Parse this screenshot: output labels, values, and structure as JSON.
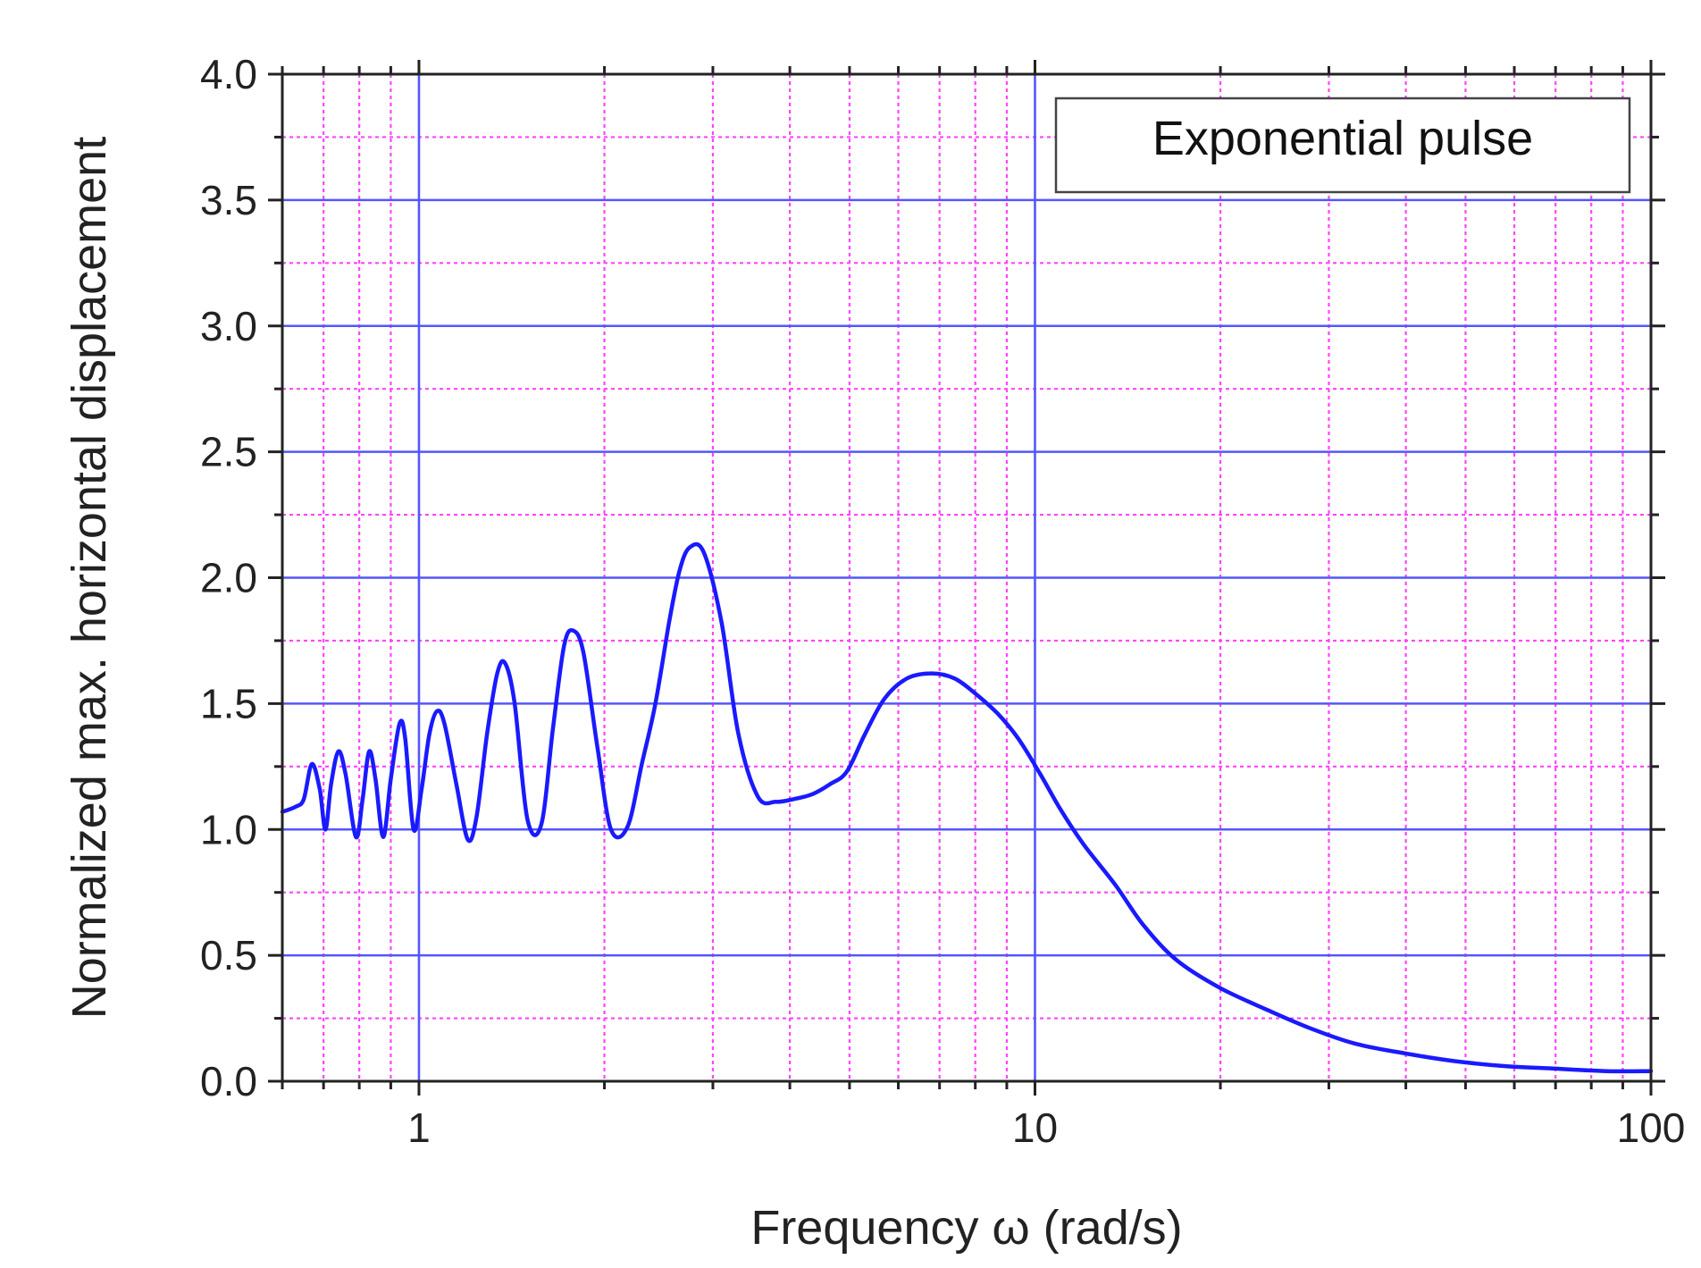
{
  "chart_data": {
    "type": "line",
    "xscale": "log",
    "xlim": [
      0.6,
      100
    ],
    "ylim": [
      0.0,
      4.0
    ],
    "xlabel": "Frequency ω (rad/s)",
    "ylabel": "Normalized max. horizontal displacement",
    "legend": {
      "position": "top-right",
      "entries": [
        "Exponential pulse"
      ]
    },
    "grid": true,
    "xticks": [
      {
        "value": 1,
        "label": "1"
      },
      {
        "value": 10,
        "label": "10"
      },
      {
        "value": 100,
        "label": "100"
      }
    ],
    "yticks": [
      {
        "value": 0.0,
        "label": "0.0"
      },
      {
        "value": 0.5,
        "label": "0.5"
      },
      {
        "value": 1.0,
        "label": "1.0"
      },
      {
        "value": 1.5,
        "label": "1.5"
      },
      {
        "value": 2.0,
        "label": "2.0"
      },
      {
        "value": 2.5,
        "label": "2.5"
      },
      {
        "value": 3.0,
        "label": "3.0"
      },
      {
        "value": 3.5,
        "label": "3.5"
      },
      {
        "value": 4.0,
        "label": "4.0"
      }
    ],
    "colors": {
      "line": "#1a1aff",
      "major_grid": "#5555ff",
      "minor_grid": "#ff44ff",
      "frame": "#222222"
    },
    "series": [
      {
        "name": "Exponential pulse",
        "x": [
          0.6,
          0.63,
          0.65,
          0.67,
          0.69,
          0.705,
          0.72,
          0.74,
          0.76,
          0.79,
          0.81,
          0.83,
          0.85,
          0.875,
          0.9,
          0.93,
          0.95,
          0.98,
          1.01,
          1.04,
          1.07,
          1.1,
          1.15,
          1.2,
          1.24,
          1.29,
          1.34,
          1.38,
          1.43,
          1.5,
          1.58,
          1.65,
          1.72,
          1.78,
          1.85,
          1.95,
          2.05,
          2.18,
          2.3,
          2.42,
          2.55,
          2.65,
          2.75,
          2.9,
          3.1,
          3.3,
          3.55,
          3.8,
          4.05,
          4.35,
          4.65,
          4.95,
          5.3,
          5.7,
          6.2,
          6.8,
          7.4,
          8.0,
          8.7,
          9.4,
          10.2,
          11.0,
          12.0,
          13.5,
          15.0,
          17.0,
          20.0,
          24.0,
          28.0,
          33.0,
          40.0,
          48.0,
          58.0,
          70.0,
          85.0,
          100.0
        ],
        "y": [
          1.07,
          1.09,
          1.12,
          1.26,
          1.16,
          1.0,
          1.18,
          1.31,
          1.22,
          0.97,
          1.12,
          1.31,
          1.2,
          0.97,
          1.2,
          1.42,
          1.36,
          1.0,
          1.16,
          1.38,
          1.47,
          1.42,
          1.18,
          0.96,
          1.05,
          1.38,
          1.62,
          1.66,
          1.5,
          1.04,
          1.02,
          1.4,
          1.73,
          1.79,
          1.7,
          1.32,
          1.0,
          1.01,
          1.26,
          1.5,
          1.83,
          2.03,
          2.12,
          2.1,
          1.82,
          1.38,
          1.13,
          1.11,
          1.12,
          1.14,
          1.18,
          1.23,
          1.38,
          1.52,
          1.6,
          1.62,
          1.6,
          1.54,
          1.46,
          1.36,
          1.22,
          1.08,
          0.94,
          0.78,
          0.62,
          0.48,
          0.37,
          0.28,
          0.21,
          0.15,
          0.11,
          0.08,
          0.06,
          0.05,
          0.04,
          0.04
        ]
      }
    ]
  }
}
